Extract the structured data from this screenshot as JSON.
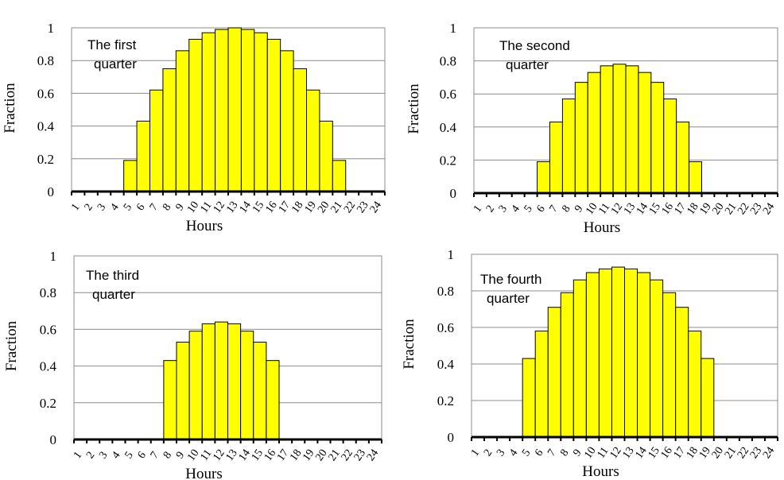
{
  "chart_data": [
    {
      "type": "bar",
      "annotation": [
        "The first",
        "quarter"
      ],
      "ylabel": "Fraction",
      "xlabel": "Hours",
      "ylim": [
        0,
        1
      ],
      "yticks": [
        "0",
        "0.2",
        "0.4",
        "0.6",
        "0.8",
        "1"
      ],
      "grid": true,
      "bar_color": "#ffff00",
      "categories": [
        "1",
        "2",
        "3",
        "4",
        "5",
        "6",
        "7",
        "8",
        "9",
        "10",
        "11",
        "12",
        "13",
        "14",
        "15",
        "16",
        "17",
        "18",
        "19",
        "20",
        "21",
        "22",
        "23",
        "24"
      ],
      "values": [
        0,
        0,
        0,
        0,
        0.19,
        0.43,
        0.62,
        0.75,
        0.86,
        0.93,
        0.97,
        0.99,
        1.0,
        0.99,
        0.97,
        0.93,
        0.86,
        0.75,
        0.62,
        0.43,
        0.19,
        0,
        0,
        0
      ]
    },
    {
      "type": "bar",
      "annotation": [
        "The second",
        "quarter"
      ],
      "ylabel": "Fraction",
      "xlabel": "Hours",
      "ylim": [
        0,
        1
      ],
      "yticks": [
        "0",
        "0.2",
        "0.4",
        "0.6",
        "0.8",
        "1"
      ],
      "grid": true,
      "bar_color": "#ffff00",
      "categories": [
        "1",
        "2",
        "3",
        "4",
        "5",
        "6",
        "7",
        "8",
        "9",
        "10",
        "11",
        "12",
        "13",
        "14",
        "15",
        "16",
        "17",
        "18",
        "19",
        "20",
        "21",
        "22",
        "23",
        "24"
      ],
      "values": [
        0,
        0,
        0,
        0,
        0,
        0.19,
        0.43,
        0.57,
        0.67,
        0.73,
        0.77,
        0.78,
        0.77,
        0.73,
        0.67,
        0.57,
        0.43,
        0.19,
        0,
        0,
        0,
        0,
        0,
        0
      ]
    },
    {
      "type": "bar",
      "annotation": [
        "The third",
        "quarter"
      ],
      "ylabel": "Fraction",
      "xlabel": "Hours",
      "ylim": [
        0,
        1
      ],
      "yticks": [
        "0",
        "0.2",
        "0.4",
        "0.6",
        "0.8",
        "1"
      ],
      "grid": true,
      "bar_color": "#ffff00",
      "categories": [
        "1",
        "2",
        "3",
        "4",
        "5",
        "6",
        "7",
        "8",
        "9",
        "10",
        "11",
        "12",
        "13",
        "14",
        "15",
        "16",
        "17",
        "18",
        "19",
        "20",
        "21",
        "22",
        "23",
        "24"
      ],
      "values": [
        0,
        0,
        0,
        0,
        0,
        0,
        0,
        0.43,
        0.53,
        0.59,
        0.63,
        0.64,
        0.63,
        0.59,
        0.53,
        0.43,
        0,
        0,
        0,
        0,
        0,
        0,
        0,
        0
      ]
    },
    {
      "type": "bar",
      "annotation": [
        "The fourth",
        "quarter"
      ],
      "ylabel": "Fraction",
      "xlabel": "Hours",
      "ylim": [
        0,
        1
      ],
      "yticks": [
        "0",
        "0.2",
        "0.4",
        "0.6",
        "0.8",
        "1"
      ],
      "grid": true,
      "bar_color": "#ffff00",
      "categories": [
        "1",
        "2",
        "3",
        "4",
        "5",
        "6",
        "7",
        "8",
        "9",
        "10",
        "11",
        "12",
        "13",
        "14",
        "15",
        "16",
        "17",
        "18",
        "19",
        "20",
        "21",
        "22",
        "23",
        "24"
      ],
      "values": [
        0,
        0,
        0,
        0,
        0.43,
        0.58,
        0.71,
        0.79,
        0.86,
        0.9,
        0.92,
        0.93,
        0.92,
        0.9,
        0.86,
        0.79,
        0.71,
        0.58,
        0.43,
        0,
        0,
        0,
        0,
        0
      ]
    }
  ]
}
